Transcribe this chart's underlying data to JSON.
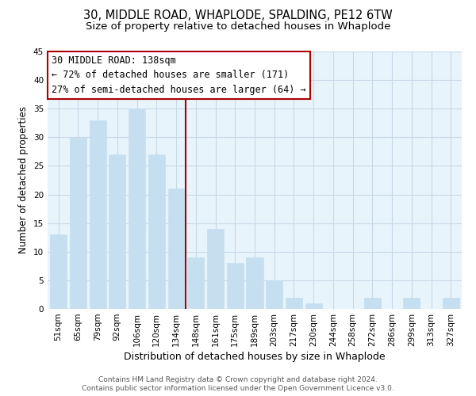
{
  "title": "30, MIDDLE ROAD, WHAPLODE, SPALDING, PE12 6TW",
  "subtitle": "Size of property relative to detached houses in Whaplode",
  "xlabel": "Distribution of detached houses by size in Whaplode",
  "ylabel": "Number of detached properties",
  "bar_labels": [
    "51sqm",
    "65sqm",
    "79sqm",
    "92sqm",
    "106sqm",
    "120sqm",
    "134sqm",
    "148sqm",
    "161sqm",
    "175sqm",
    "189sqm",
    "203sqm",
    "217sqm",
    "230sqm",
    "244sqm",
    "258sqm",
    "272sqm",
    "286sqm",
    "299sqm",
    "313sqm",
    "327sqm"
  ],
  "bar_values": [
    13,
    30,
    33,
    27,
    35,
    27,
    21,
    9,
    14,
    8,
    9,
    5,
    2,
    1,
    0,
    0,
    2,
    0,
    2,
    0,
    2
  ],
  "bar_color": "#c5dff0",
  "bar_edge_color": "#c5dff0",
  "highlight_index": 6,
  "highlight_line_color": "#aa0000",
  "ylim": [
    0,
    45
  ],
  "yticks": [
    0,
    5,
    10,
    15,
    20,
    25,
    30,
    35,
    40,
    45
  ],
  "annotation_title": "30 MIDDLE ROAD: 138sqm",
  "annotation_line1": "← 72% of detached houses are smaller (171)",
  "annotation_line2": "27% of semi-detached houses are larger (64) →",
  "annotation_box_color": "#ffffff",
  "annotation_box_edge": "#aa0000",
  "footer_line1": "Contains HM Land Registry data © Crown copyright and database right 2024.",
  "footer_line2": "Contains public sector information licensed under the Open Government Licence v3.0.",
  "background_color": "#ffffff",
  "plot_bg_color": "#e8f4fc",
  "grid_color": "#c8d8e8",
  "title_fontsize": 10.5,
  "subtitle_fontsize": 9.5,
  "xlabel_fontsize": 9,
  "ylabel_fontsize": 8.5,
  "tick_fontsize": 7.5,
  "footer_fontsize": 6.5,
  "ann_fontsize": 8.5
}
